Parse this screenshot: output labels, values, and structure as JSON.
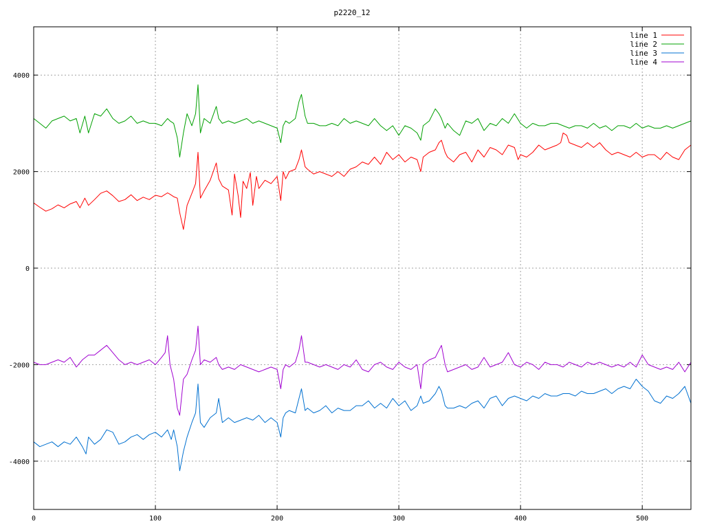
{
  "chart_data": {
    "type": "line",
    "title": "p2220_12",
    "xlabel": "",
    "ylabel": "",
    "xlim": [
      0,
      540
    ],
    "ylim": [
      -5000,
      5000
    ],
    "x_ticks": [
      0,
      100,
      200,
      300,
      400,
      500
    ],
    "y_ticks": [
      -4000,
      -2000,
      0,
      2000,
      4000
    ],
    "grid": true,
    "legend_position": "top-right",
    "series": [
      {
        "name": "line 1",
        "color": "#ff0000",
        "x": [
          0,
          5,
          10,
          15,
          20,
          25,
          30,
          35,
          38,
          42,
          45,
          50,
          55,
          60,
          65,
          70,
          75,
          80,
          85,
          90,
          95,
          100,
          105,
          110,
          112,
          115,
          118,
          120,
          123,
          126,
          130,
          133,
          135,
          137,
          140,
          145,
          150,
          152,
          155,
          160,
          163,
          165,
          168,
          170,
          172,
          175,
          178,
          180,
          183,
          185,
          190,
          195,
          200,
          203,
          205,
          207,
          210,
          215,
          218,
          220,
          223,
          225,
          230,
          235,
          240,
          245,
          250,
          255,
          260,
          265,
          270,
          275,
          280,
          285,
          290,
          295,
          300,
          305,
          310,
          315,
          318,
          320,
          325,
          330,
          333,
          335,
          338,
          340,
          345,
          350,
          355,
          360,
          365,
          370,
          375,
          380,
          385,
          390,
          395,
          398,
          400,
          405,
          410,
          415,
          420,
          425,
          430,
          433,
          435,
          438,
          440,
          445,
          450,
          455,
          460,
          465,
          470,
          475,
          480,
          485,
          490,
          495,
          500,
          505,
          510,
          515,
          520,
          525,
          530,
          535,
          540
        ],
        "y": [
          1350,
          1260,
          1180,
          1230,
          1310,
          1250,
          1330,
          1380,
          1250,
          1450,
          1300,
          1420,
          1550,
          1600,
          1500,
          1380,
          1420,
          1520,
          1400,
          1470,
          1420,
          1510,
          1480,
          1560,
          1530,
          1480,
          1450,
          1150,
          800,
          1300,
          1550,
          1750,
          2400,
          1450,
          1600,
          1820,
          2180,
          1850,
          1700,
          1620,
          1100,
          1950,
          1500,
          1050,
          1800,
          1650,
          1980,
          1300,
          1900,
          1650,
          1820,
          1750,
          1900,
          1400,
          2000,
          1850,
          2000,
          2050,
          2250,
          2450,
          2100,
          2050,
          1950,
          2000,
          1950,
          1900,
          2000,
          1900,
          2050,
          2100,
          2200,
          2150,
          2300,
          2150,
          2400,
          2250,
          2350,
          2200,
          2300,
          2250,
          2000,
          2300,
          2400,
          2450,
          2600,
          2650,
          2400,
          2300,
          2200,
          2350,
          2400,
          2200,
          2450,
          2300,
          2500,
          2450,
          2350,
          2550,
          2500,
          2250,
          2350,
          2300,
          2400,
          2550,
          2450,
          2500,
          2550,
          2600,
          2800,
          2750,
          2600,
          2550,
          2500,
          2600,
          2500,
          2600,
          2450,
          2350,
          2400,
          2350,
          2300,
          2400,
          2300,
          2350,
          2350,
          2250,
          2400,
          2300,
          2250,
          2450,
          2550
        ]
      },
      {
        "name": "line 2",
        "color": "#00a000",
        "x": [
          0,
          5,
          10,
          15,
          20,
          25,
          30,
          35,
          38,
          42,
          45,
          50,
          55,
          60,
          65,
          70,
          75,
          80,
          85,
          90,
          95,
          100,
          105,
          110,
          112,
          115,
          118,
          120,
          123,
          126,
          130,
          133,
          135,
          137,
          140,
          145,
          150,
          152,
          155,
          160,
          165,
          170,
          175,
          180,
          185,
          190,
          195,
          200,
          203,
          205,
          207,
          210,
          215,
          218,
          220,
          223,
          225,
          230,
          235,
          240,
          245,
          250,
          255,
          260,
          265,
          270,
          275,
          280,
          285,
          290,
          295,
          300,
          305,
          310,
          315,
          318,
          320,
          325,
          330,
          333,
          335,
          338,
          340,
          345,
          350,
          355,
          360,
          365,
          370,
          375,
          380,
          385,
          390,
          395,
          400,
          405,
          410,
          415,
          420,
          425,
          430,
          435,
          440,
          445,
          450,
          455,
          460,
          465,
          470,
          475,
          480,
          485,
          490,
          495,
          500,
          505,
          510,
          515,
          520,
          525,
          530,
          535,
          540
        ],
        "y": [
          3100,
          3000,
          2900,
          3050,
          3100,
          3150,
          3050,
          3100,
          2800,
          3150,
          2800,
          3200,
          3150,
          3300,
          3100,
          3000,
          3050,
          3150,
          3000,
          3050,
          3000,
          3000,
          2950,
          3100,
          3050,
          3000,
          2700,
          2300,
          2800,
          3200,
          2950,
          3200,
          3800,
          2800,
          3100,
          3000,
          3350,
          3100,
          3000,
          3050,
          3000,
          3050,
          3100,
          3000,
          3050,
          3000,
          2950,
          2900,
          2600,
          2950,
          3050,
          3000,
          3100,
          3450,
          3600,
          3150,
          3000,
          3000,
          2950,
          2950,
          3000,
          2950,
          3100,
          3000,
          3050,
          3000,
          2950,
          3100,
          2950,
          2850,
          2950,
          2750,
          2950,
          2900,
          2800,
          2650,
          2950,
          3050,
          3300,
          3200,
          3100,
          2900,
          3000,
          2850,
          2750,
          3050,
          3000,
          3100,
          2850,
          3000,
          2950,
          3100,
          3000,
          3200,
          3000,
          2900,
          3000,
          2950,
          2950,
          3000,
          3000,
          2950,
          2900,
          2950,
          2950,
          2900,
          3000,
          2900,
          2950,
          2850,
          2950,
          2950,
          2900,
          3000,
          2900,
          2950,
          2900,
          2900,
          2950,
          2900,
          2950,
          3000,
          3050
        ]
      },
      {
        "name": "line 3",
        "color": "#0070d0",
        "x": [
          0,
          5,
          10,
          15,
          20,
          25,
          30,
          35,
          40,
          43,
          45,
          50,
          55,
          60,
          65,
          70,
          75,
          80,
          85,
          90,
          95,
          100,
          105,
          110,
          113,
          115,
          118,
          120,
          123,
          126,
          130,
          133,
          135,
          137,
          140,
          145,
          150,
          152,
          155,
          160,
          165,
          170,
          175,
          180,
          185,
          190,
          195,
          200,
          203,
          205,
          207,
          210,
          215,
          218,
          220,
          223,
          225,
          230,
          235,
          240,
          245,
          250,
          255,
          260,
          265,
          270,
          275,
          280,
          285,
          290,
          295,
          300,
          305,
          310,
          315,
          318,
          320,
          325,
          330,
          333,
          335,
          338,
          340,
          345,
          350,
          355,
          360,
          365,
          370,
          375,
          380,
          385,
          390,
          395,
          400,
          405,
          410,
          415,
          420,
          425,
          430,
          435,
          440,
          445,
          450,
          455,
          460,
          465,
          470,
          475,
          480,
          485,
          490,
          495,
          500,
          505,
          510,
          515,
          520,
          525,
          530,
          535,
          540
        ],
        "y": [
          -3600,
          -3700,
          -3650,
          -3600,
          -3700,
          -3600,
          -3650,
          -3500,
          -3700,
          -3850,
          -3500,
          -3650,
          -3550,
          -3350,
          -3400,
          -3650,
          -3600,
          -3500,
          -3450,
          -3550,
          -3450,
          -3400,
          -3500,
          -3350,
          -3550,
          -3350,
          -3700,
          -4200,
          -3800,
          -3500,
          -3200,
          -3000,
          -2400,
          -3200,
          -3300,
          -3100,
          -3000,
          -2700,
          -3200,
          -3100,
          -3200,
          -3150,
          -3100,
          -3150,
          -3050,
          -3200,
          -3100,
          -3200,
          -3500,
          -3100,
          -3000,
          -2950,
          -3000,
          -2700,
          -2500,
          -2950,
          -2900,
          -3000,
          -2950,
          -2850,
          -3000,
          -2900,
          -2950,
          -2950,
          -2850,
          -2850,
          -2750,
          -2900,
          -2800,
          -2900,
          -2700,
          -2850,
          -2750,
          -2950,
          -2850,
          -2650,
          -2800,
          -2750,
          -2600,
          -2450,
          -2550,
          -2850,
          -2900,
          -2900,
          -2850,
          -2900,
          -2800,
          -2750,
          -2900,
          -2700,
          -2650,
          -2850,
          -2700,
          -2650,
          -2700,
          -2750,
          -2650,
          -2700,
          -2600,
          -2650,
          -2650,
          -2600,
          -2600,
          -2650,
          -2550,
          -2600,
          -2600,
          -2550,
          -2500,
          -2600,
          -2500,
          -2450,
          -2500,
          -2300,
          -2450,
          -2550,
          -2750,
          -2800,
          -2650,
          -2700,
          -2600,
          -2450,
          -2800
        ]
      },
      {
        "name": "line 4",
        "color": "#a000d0",
        "x": [
          0,
          5,
          10,
          15,
          20,
          25,
          30,
          35,
          40,
          45,
          50,
          55,
          60,
          65,
          70,
          75,
          80,
          85,
          90,
          95,
          100,
          105,
          108,
          110,
          112,
          115,
          118,
          120,
          123,
          126,
          130,
          133,
          135,
          137,
          140,
          145,
          150,
          152,
          155,
          160,
          165,
          170,
          175,
          180,
          185,
          190,
          195,
          200,
          203,
          205,
          207,
          210,
          215,
          218,
          220,
          223,
          225,
          230,
          235,
          240,
          245,
          250,
          255,
          260,
          265,
          270,
          275,
          280,
          285,
          290,
          295,
          300,
          305,
          310,
          315,
          318,
          320,
          325,
          330,
          333,
          335,
          338,
          340,
          345,
          350,
          355,
          360,
          365,
          370,
          375,
          380,
          385,
          390,
          395,
          400,
          405,
          410,
          415,
          420,
          425,
          430,
          435,
          440,
          445,
          450,
          455,
          460,
          465,
          470,
          475,
          480,
          485,
          490,
          495,
          500,
          505,
          510,
          515,
          520,
          525,
          530,
          535,
          540
        ],
        "y": [
          -1950,
          -2000,
          -2000,
          -1950,
          -1900,
          -1950,
          -1850,
          -2050,
          -1900,
          -1800,
          -1800,
          -1700,
          -1600,
          -1750,
          -1900,
          -2000,
          -1950,
          -2000,
          -1950,
          -1900,
          -2000,
          -1850,
          -1750,
          -1400,
          -2000,
          -2300,
          -2900,
          -3050,
          -2300,
          -2200,
          -1900,
          -1700,
          -1200,
          -2000,
          -1900,
          -1950,
          -1850,
          -2000,
          -2100,
          -2050,
          -2100,
          -2000,
          -2050,
          -2100,
          -2150,
          -2100,
          -2050,
          -2100,
          -2500,
          -2100,
          -2000,
          -2050,
          -1950,
          -1700,
          -1400,
          -1950,
          -1950,
          -2000,
          -2050,
          -2000,
          -2050,
          -2100,
          -2000,
          -2050,
          -1900,
          -2100,
          -2150,
          -2000,
          -1950,
          -2050,
          -2100,
          -1950,
          -2050,
          -2100,
          -2000,
          -2500,
          -2000,
          -1900,
          -1850,
          -1700,
          -1600,
          -2000,
          -2150,
          -2100,
          -2050,
          -2000,
          -2100,
          -2050,
          -1850,
          -2050,
          -2000,
          -1950,
          -1750,
          -2000,
          -2050,
          -1950,
          -2000,
          -2100,
          -1950,
          -2000,
          -2000,
          -2050,
          -1950,
          -2000,
          -2050,
          -1950,
          -2000,
          -1950,
          -2000,
          -2050,
          -2000,
          -2050,
          -1950,
          -2050,
          -1800,
          -2000,
          -2050,
          -2100,
          -2050,
          -2100,
          -1950,
          -2150,
          -1950
        ]
      }
    ]
  }
}
